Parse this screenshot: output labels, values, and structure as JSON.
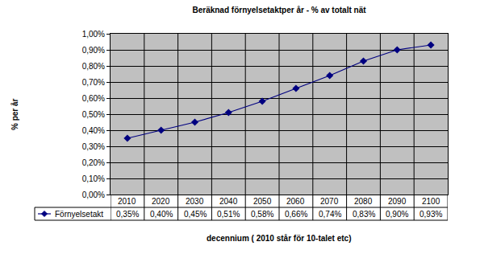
{
  "chart_data": {
    "type": "line",
    "title": "Beräknad förnyelsetaktper år - % av totalt nät",
    "x_label": "decennium ( 2010 står för 10-talet etc)",
    "y_label": "% per år",
    "categories": [
      "2010",
      "2020",
      "2030",
      "2040",
      "2050",
      "2060",
      "2070",
      "2080",
      "2090",
      "2100"
    ],
    "series": [
      {
        "name": "Förnyelsetakt",
        "color": "#000080",
        "marker": "diamond",
        "values": [
          0.35,
          0.4,
          0.45,
          0.51,
          0.58,
          0.66,
          0.74,
          0.83,
          0.9,
          0.93
        ],
        "value_labels": [
          "0,35%",
          "0,40%",
          "0,45%",
          "0,51%",
          "0,58%",
          "0,66%",
          "0,74%",
          "0,83%",
          "0,90%",
          "0,93%"
        ]
      }
    ],
    "ylim": [
      0,
      1.0
    ],
    "yticks": [
      {
        "value": 0,
        "label": "0,00%"
      },
      {
        "value": 0.1,
        "label": "0,10%"
      },
      {
        "value": 0.2,
        "label": "0,20%"
      },
      {
        "value": 0.3,
        "label": "0,30%"
      },
      {
        "value": 0.4,
        "label": "0,40%"
      },
      {
        "value": 0.5,
        "label": "0,50%"
      },
      {
        "value": 0.6,
        "label": "0,60%"
      },
      {
        "value": 0.7,
        "label": "0,70%"
      },
      {
        "value": 0.8,
        "label": "0,80%"
      },
      {
        "value": 0.9,
        "label": "0,90%"
      },
      {
        "value": 1.0,
        "label": "1,00%"
      }
    ],
    "grid": true
  }
}
